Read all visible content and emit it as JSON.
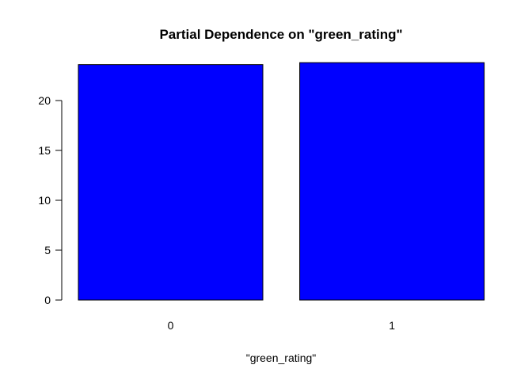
{
  "chart_data": {
    "type": "bar",
    "title": "Partial Dependence on \"green_rating\"",
    "xlabel": "\"green_rating\"",
    "ylabel": "",
    "categories": [
      "0",
      "1"
    ],
    "values": [
      23.6,
      23.8
    ],
    "ylim": [
      0,
      24
    ],
    "yticks": [
      0,
      5,
      10,
      15,
      20
    ],
    "bar_color": "#0000ff",
    "bar_border_color": "#000000",
    "grid": false,
    "legend": "none"
  }
}
